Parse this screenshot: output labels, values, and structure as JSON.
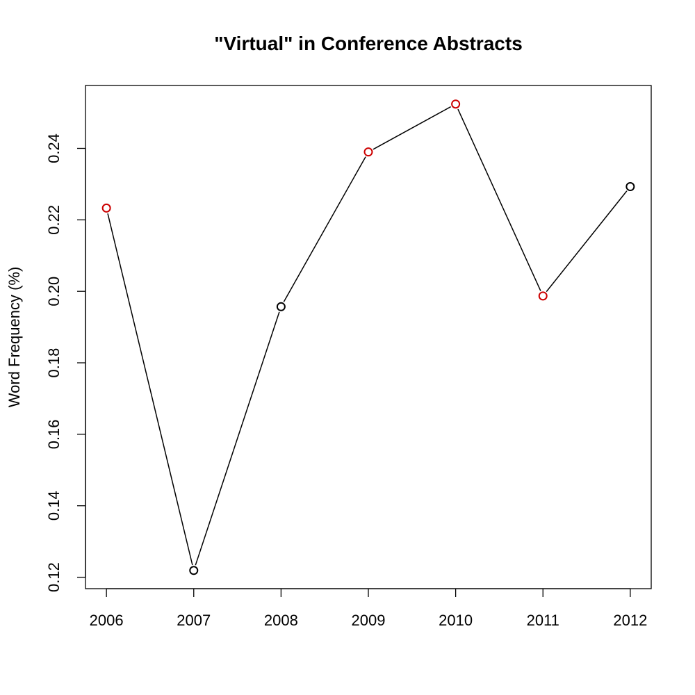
{
  "chart_data": {
    "type": "line",
    "title": "\"Virtual\" in Conference Abstracts",
    "xlabel": "",
    "ylabel": "Word Frequency (%)",
    "x": [
      2006,
      2007,
      2008,
      2009,
      2010,
      2011,
      2012
    ],
    "x_tick_labels": [
      "2006",
      "2007",
      "2008",
      "2009",
      "2010",
      "2011",
      "2012"
    ],
    "y_ticks": [
      0.12,
      0.14,
      0.16,
      0.18,
      0.2,
      0.22,
      0.24
    ],
    "y_tick_labels": [
      "0.12",
      "0.14",
      "0.16",
      "0.18",
      "0.20",
      "0.22",
      "0.24"
    ],
    "xlim": [
      2005.76,
      2012.24
    ],
    "ylim": [
      0.1168,
      0.2576
    ],
    "series": [
      {
        "values": [
          0.2233,
          0.1219,
          0.1957,
          0.239,
          0.2524,
          0.1987,
          0.2293
        ],
        "point_colors": [
          "#cc0000",
          "#000000",
          "#000000",
          "#cc0000",
          "#cc0000",
          "#cc0000",
          "#000000"
        ]
      }
    ],
    "line_color": "#000000",
    "grid": false,
    "legend": "none"
  }
}
